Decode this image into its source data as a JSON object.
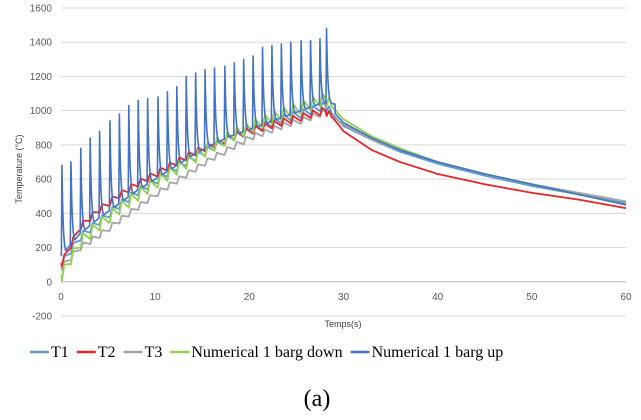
{
  "chart_data": {
    "type": "line",
    "title": "",
    "xlabel": "Temps(s)",
    "ylabel": "Temperature (°C)",
    "xlim": [
      0,
      60
    ],
    "ylim": [
      -200,
      1600
    ],
    "xticks": [
      "0",
      "10",
      "20",
      "30",
      "40",
      "50",
      "60"
    ],
    "yticks": [
      "-200",
      "0",
      "200",
      "400",
      "600",
      "800",
      "1000",
      "1200",
      "1400",
      "1600"
    ],
    "grid": true,
    "legend_position": "bottom",
    "caption": "(a)",
    "pulse_times": [
      0.1,
      1.05,
      2.1,
      3.1,
      4.1,
      5.2,
      6.2,
      7.2,
      8.2,
      9.2,
      10.3,
      11.3,
      12.3,
      13.3,
      14.3,
      15.3,
      16.3,
      17.4,
      18.4,
      19.4,
      20.4,
      21.4,
      22.4,
      23.4,
      24.4,
      25.5,
      26.5,
      27.5,
      28.2
    ],
    "series": [
      {
        "name": "T1",
        "color": "#5b9bd5",
        "x": [
          0,
          2,
          4,
          6,
          8,
          10,
          12,
          14,
          16,
          18,
          20,
          22,
          24,
          26,
          28,
          29,
          30,
          33,
          36,
          40,
          45,
          50,
          55,
          60
        ],
        "y": [
          100,
          260,
          350,
          440,
          520,
          590,
          660,
          720,
          780,
          840,
          880,
          920,
          960,
          990,
          1030,
          970,
          910,
          830,
          760,
          690,
          620,
          560,
          510,
          460
        ]
      },
      {
        "name": "T2",
        "color": "#e8272a",
        "x": [
          0,
          2,
          4,
          6,
          8,
          10,
          12,
          14,
          16,
          18,
          20,
          22,
          24,
          26,
          28,
          29,
          30,
          33,
          36,
          40,
          45,
          50,
          55,
          60
        ],
        "y": [
          100,
          320,
          420,
          500,
          570,
          630,
          690,
          750,
          800,
          845,
          880,
          910,
          940,
          970,
          1000,
          950,
          880,
          770,
          700,
          630,
          570,
          520,
          480,
          430
        ]
      },
      {
        "name": "T3",
        "color": "#a5a5a5",
        "x": [
          0,
          2,
          4,
          6,
          8,
          10,
          12,
          14,
          16,
          18,
          20,
          22,
          24,
          26,
          28,
          29,
          30,
          33,
          36,
          40,
          45,
          50,
          55,
          60
        ],
        "y": [
          80,
          200,
          270,
          350,
          430,
          510,
          580,
          650,
          720,
          780,
          840,
          880,
          920,
          950,
          990,
          960,
          920,
          830,
          770,
          700,
          630,
          570,
          520,
          470
        ]
      },
      {
        "name": "Numerical 1 barg down",
        "color": "#92d050",
        "x": [
          0,
          2,
          4,
          6,
          8,
          10,
          12,
          14,
          16,
          18,
          20,
          22,
          24,
          26,
          28,
          29,
          30,
          33,
          36,
          40,
          45,
          50,
          55,
          60
        ],
        "y": [
          30,
          230,
          330,
          420,
          500,
          580,
          650,
          720,
          790,
          850,
          900,
          950,
          990,
          1030,
          1070,
          1010,
          950,
          850,
          780,
          700,
          630,
          570,
          510,
          450
        ]
      },
      {
        "name": "Numerical 1 barg up",
        "color": "#4472c4",
        "peaks": [
          680,
          740,
          780,
          840,
          880,
          940,
          980,
          1030,
          1060,
          1070,
          1080,
          1110,
          1140,
          1200,
          1220,
          1240,
          1250,
          1260,
          1280,
          1300,
          1320,
          1370,
          1380,
          1390,
          1400,
          1410,
          1410,
          1420,
          1480
        ],
        "x": [
          0,
          2,
          4,
          6,
          8,
          10,
          12,
          14,
          16,
          18,
          20,
          22,
          24,
          26,
          28,
          29,
          30,
          33,
          36,
          40,
          45,
          50,
          55,
          60
        ],
        "y": [
          150,
          280,
          370,
          450,
          530,
          600,
          670,
          740,
          800,
          850,
          890,
          930,
          970,
          1010,
          1050,
          990,
          930,
          840,
          770,
          700,
          630,
          570,
          510,
          450
        ]
      }
    ]
  }
}
